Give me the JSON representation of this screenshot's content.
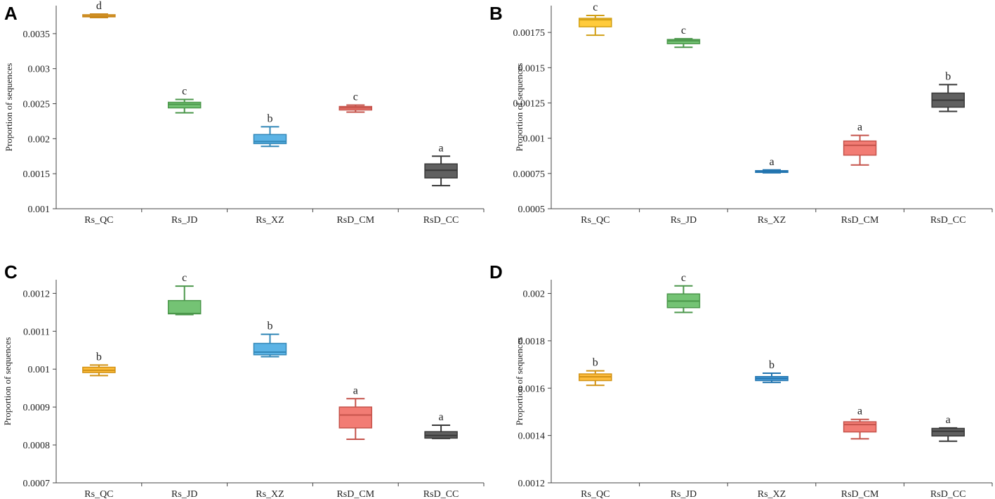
{
  "chart_data": [
    {
      "type": "box",
      "panel_label": "A",
      "title": "",
      "xlabel": "",
      "ylabel": "Proportion of sequences",
      "ylim": [
        0.001,
        0.0039
      ],
      "yticks": [
        0.001,
        0.0015,
        0.002,
        0.0025,
        0.003,
        0.0035
      ],
      "ytick_labels": [
        "0.001",
        "0.0015",
        "0.002",
        "0.0025",
        "0.003",
        "0.0035"
      ],
      "categories": [
        "Rs_QC",
        "Rs_JD",
        "Rs_XZ",
        "RsD_CM",
        "RsD_CC"
      ],
      "boxes": [
        {
          "category": "Rs_QC",
          "min": 0.00373,
          "q1": 0.00374,
          "median": 0.00375,
          "q3": 0.00377,
          "max": 0.00378,
          "sig": "d",
          "color": "#f5a623"
        },
        {
          "category": "Rs_JD",
          "min": 0.00237,
          "q1": 0.00244,
          "median": 0.00249,
          "q3": 0.00252,
          "max": 0.00256,
          "sig": "c",
          "color": "#5cb85c"
        },
        {
          "category": "Rs_XZ",
          "min": 0.00189,
          "q1": 0.00193,
          "median": 0.00196,
          "q3": 0.00206,
          "max": 0.00217,
          "sig": "b",
          "color": "#3ea6e0"
        },
        {
          "category": "RsD_CM",
          "min": 0.00238,
          "q1": 0.00241,
          "median": 0.00244,
          "q3": 0.00246,
          "max": 0.00248,
          "sig": "c",
          "color": "#f0655c"
        },
        {
          "category": "RsD_CC",
          "min": 0.00133,
          "q1": 0.00144,
          "median": 0.00155,
          "q3": 0.00164,
          "max": 0.00175,
          "sig": "a",
          "color": "#444444"
        }
      ]
    },
    {
      "type": "box",
      "panel_label": "B",
      "title": "",
      "xlabel": "",
      "ylabel": "Proportion of sequences",
      "ylim": [
        0.0005,
        0.00194
      ],
      "yticks": [
        0.0005,
        0.00075,
        0.001,
        0.00125,
        0.0015,
        0.00175
      ],
      "ytick_labels": [
        "0.0005",
        "0.00075",
        "0.001",
        "0.00125",
        "0.0015",
        "0.00175"
      ],
      "categories": [
        "Rs_QC",
        "Rs_JD",
        "Rs_XZ",
        "RsD_CM",
        "RsD_CC"
      ],
      "boxes": [
        {
          "category": "Rs_QC",
          "min": 0.00173,
          "q1": 0.00179,
          "median": 0.00184,
          "q3": 0.00185,
          "max": 0.00187,
          "sig": "c",
          "color": "#ffc21a"
        },
        {
          "category": "Rs_JD",
          "min": 0.001645,
          "q1": 0.00167,
          "median": 0.00169,
          "q3": 0.0017,
          "max": 0.001705,
          "sig": "c",
          "color": "#5cb85c"
        },
        {
          "category": "Rs_XZ",
          "min": 0.000755,
          "q1": 0.00076,
          "median": 0.000765,
          "q3": 0.00077,
          "max": 0.000775,
          "sig": "a",
          "color": "#2b8fd6"
        },
        {
          "category": "RsD_CM",
          "min": 0.00081,
          "q1": 0.00088,
          "median": 0.00095,
          "q3": 0.00098,
          "max": 0.00102,
          "sig": "a",
          "color": "#f0655c"
        },
        {
          "category": "RsD_CC",
          "min": 0.00119,
          "q1": 0.00122,
          "median": 0.00127,
          "q3": 0.00132,
          "max": 0.00138,
          "sig": "b",
          "color": "#444444"
        }
      ]
    },
    {
      "type": "box",
      "panel_label": "C",
      "title": "",
      "xlabel": "",
      "ylabel": "Proportion of sequences",
      "ylim": [
        0.0007,
        0.001236
      ],
      "yticks": [
        0.0007,
        0.0008,
        0.0009,
        0.001,
        0.0011,
        0.0012
      ],
      "ytick_labels": [
        "0.0007",
        "0.0008",
        "0.0009",
        "0.001",
        "0.0011",
        "0.0012"
      ],
      "categories": [
        "Rs_QC",
        "Rs_JD",
        "Rs_XZ",
        "RsD_CM",
        "RsD_CC"
      ],
      "boxes": [
        {
          "category": "Rs_QC",
          "min": 0.000983,
          "q1": 0.000991,
          "median": 0.000997,
          "q3": 0.001005,
          "max": 0.001011,
          "sig": "b",
          "color": "#ffb21a"
        },
        {
          "category": "Rs_JD",
          "min": 0.001144,
          "q1": 0.001146,
          "median": 0.001147,
          "q3": 0.001181,
          "max": 0.001219,
          "sig": "c",
          "color": "#5cb85c"
        },
        {
          "category": "Rs_XZ",
          "min": 0.001033,
          "q1": 0.001038,
          "median": 0.001045,
          "q3": 0.001068,
          "max": 0.001092,
          "sig": "b",
          "color": "#3ea6e0"
        },
        {
          "category": "RsD_CM",
          "min": 0.000815,
          "q1": 0.000845,
          "median": 0.000879,
          "q3": 0.0009,
          "max": 0.000922,
          "sig": "a",
          "color": "#f0655c"
        },
        {
          "category": "RsD_CC",
          "min": 0.000817,
          "q1": 0.000818,
          "median": 0.000825,
          "q3": 0.000835,
          "max": 0.000852,
          "sig": "a",
          "color": "#444444"
        }
      ]
    },
    {
      "type": "box",
      "panel_label": "D",
      "title": "",
      "xlabel": "",
      "ylabel": "Proportion of sequences",
      "ylim": [
        0.0012,
        0.002058
      ],
      "yticks": [
        0.0012,
        0.0014,
        0.0016,
        0.0018,
        0.002
      ],
      "ytick_labels": [
        "0.0012",
        "0.0014",
        "0.0016",
        "0.0018",
        "0.002"
      ],
      "categories": [
        "Rs_QC",
        "Rs_JD",
        "Rs_XZ",
        "RsD_CM",
        "RsD_CC"
      ],
      "boxes": [
        {
          "category": "Rs_QC",
          "min": 0.001612,
          "q1": 0.001632,
          "median": 0.001648,
          "q3": 0.00166,
          "max": 0.001673,
          "sig": "b",
          "color": "#ffb21a"
        },
        {
          "category": "Rs_JD",
          "min": 0.00192,
          "q1": 0.00194,
          "median": 0.001968,
          "q3": 0.001998,
          "max": 0.002032,
          "sig": "c",
          "color": "#5cb85c"
        },
        {
          "category": "Rs_XZ",
          "min": 0.001624,
          "q1": 0.001632,
          "median": 0.001641,
          "q3": 0.001649,
          "max": 0.001663,
          "sig": "b",
          "color": "#2b8fd6"
        },
        {
          "category": "RsD_CM",
          "min": 0.001386,
          "q1": 0.001415,
          "median": 0.001446,
          "q3": 0.001458,
          "max": 0.001468,
          "sig": "a",
          "color": "#f0655c"
        },
        {
          "category": "RsD_CC",
          "min": 0.001376,
          "q1": 0.001398,
          "median": 0.001418,
          "q3": 0.00143,
          "max": 0.001432,
          "sig": "a",
          "color": "#444444"
        }
      ]
    }
  ]
}
